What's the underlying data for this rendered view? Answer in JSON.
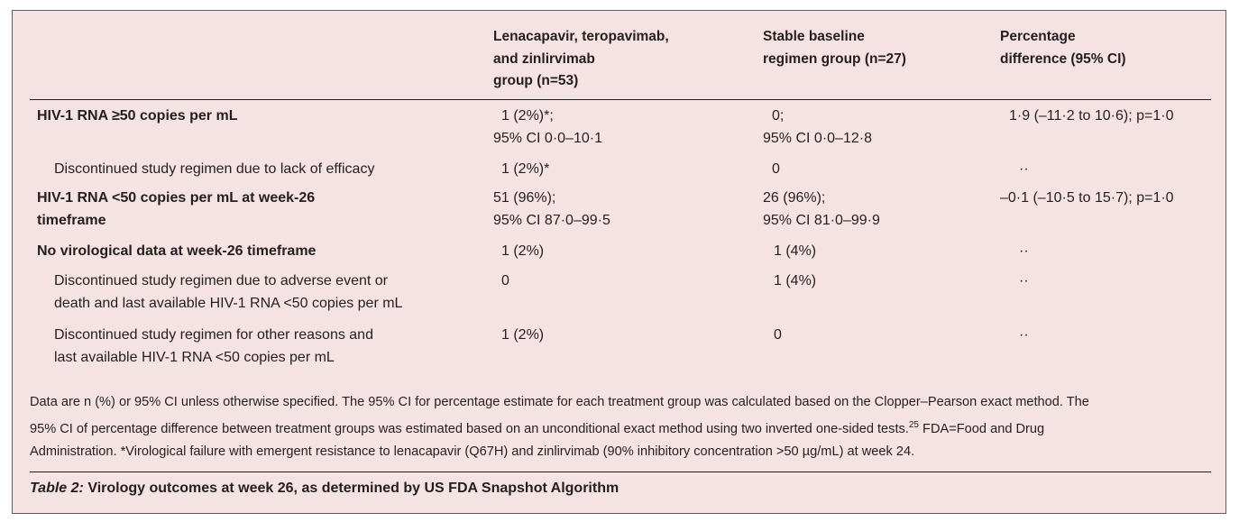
{
  "table": {
    "headers": {
      "col1": [
        "Lenacapavir, teropavimab,",
        "and zinlirvimab",
        "group (n=53)"
      ],
      "col2": [
        "Stable baseline",
        "regimen group (n=27)"
      ],
      "col3": [
        "Percentage",
        "difference (95% CI)"
      ]
    },
    "rows": [
      {
        "label": [
          "HIV-1 RNA ≥50 copies per mL"
        ],
        "bold": true,
        "c1": [
          "1 (2%)*;",
          "95% CI 0·0–10·1"
        ],
        "c2": [
          "0;",
          "95% CI 0·0–12·8"
        ],
        "c3": [
          "1·9 (–11·2 to 10·6); p=1·0"
        ]
      },
      {
        "label": [
          "Discontinued study regimen due to lack of efficacy"
        ],
        "bold": false,
        "c1": [
          "1 (2%)*"
        ],
        "c2": [
          "0"
        ],
        "c3": [
          "··"
        ]
      },
      {
        "label": [
          "HIV-1 RNA <50 copies per mL at week-26",
          "timeframe"
        ],
        "bold": true,
        "c1": [
          "51 (96%);",
          "95% CI 87·0–99·5"
        ],
        "c2": [
          "26 (96%);",
          "95% CI 81·0–99·9"
        ],
        "c3": [
          "–0·1 (–10·5 to 15·7); p=1·0"
        ]
      },
      {
        "label": [
          "No virological data at week-26 timeframe"
        ],
        "bold": true,
        "c1": [
          "1 (2%)"
        ],
        "c2": [
          "1 (4%)"
        ],
        "c3": [
          "··"
        ]
      },
      {
        "label": [
          "Discontinued study regimen due to adverse event or",
          "death and last available HIV-1 RNA <50 copies per mL"
        ],
        "bold": false,
        "c1": [
          "0"
        ],
        "c2": [
          "1 (4%)"
        ],
        "c3": [
          "··"
        ]
      },
      {
        "label": [
          "Discontinued study regimen for other reasons and",
          "last available HIV-1 RNA <50 copies per mL"
        ],
        "bold": false,
        "c1": [
          "1 (2%)"
        ],
        "c2": [
          "0"
        ],
        "c3": [
          "··"
        ]
      }
    ]
  },
  "footnote": {
    "line1": "Data are n (%) or 95% CI unless otherwise specified. The 95% CI for percentage estimate for each treatment group was calculated based on the Clopper–Pearson exact method. The",
    "line2": "95% CI of percentage difference between treatment groups was estimated based on an unconditional exact method using two inverted one-sided tests.",
    "ref": "25",
    "line2b": " FDA=Food and Drug",
    "line3": "Administration. *Virological failure with emergent resistance to lenacapavir (Q67H) and zinlirvimab (90% inhibitory concentration >50 µg/mL) at week 24."
  },
  "caption": {
    "label": "Table 2:",
    "text": " Virology outcomes at week 26, as determined by US FDA Snapshot Algorithm"
  },
  "colors": {
    "panel_bg": "#f5e2e2",
    "border": "#c42b56",
    "text": "#231f20"
  }
}
